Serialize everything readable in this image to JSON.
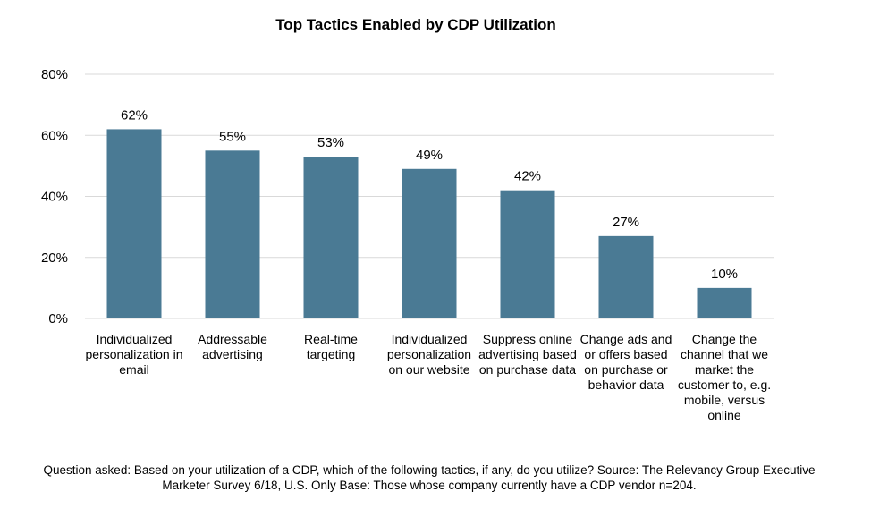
{
  "chart_data": {
    "type": "bar",
    "title": "Top Tactics Enabled by CDP Utilization",
    "xlabel": "",
    "ylabel": "",
    "categories": [
      "Individualized personalization in email",
      "Addressable advertising",
      "Real-time targeting",
      "Individualized personalization on our website",
      "Suppress online advertising based on purchase data",
      "Change ads and or offers based on purchase or behavior data",
      "Change the channel that we market the customer to, e.g. mobile, versus online"
    ],
    "values": [
      62,
      55,
      53,
      49,
      42,
      27,
      10
    ],
    "value_labels": [
      "62%",
      "55%",
      "53%",
      "49%",
      "42%",
      "27%",
      "10%"
    ],
    "ylim": [
      0,
      80
    ],
    "yticks": [
      0,
      20,
      40,
      60,
      80
    ],
    "ytick_labels": [
      "0%",
      "20%",
      "40%",
      "60%",
      "80%"
    ],
    "grid": true,
    "bar_color": "#4a7a94",
    "grid_color": "#d9d9d9"
  },
  "footnote": "Question asked: Based on your utilization of a CDP, which of the following tactics, if any, do you utilize? Source: The Relevancy Group Executive Marketer Survey 6/18, U.S. Only Base: Those whose company currently have a CDP vendor n=204."
}
